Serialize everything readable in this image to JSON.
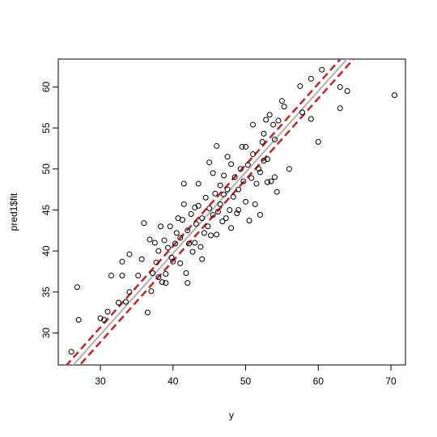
{
  "chart_data": {
    "type": "scatter",
    "x_label": "y",
    "y_label": "pred1$fit",
    "xlim": [
      24.2,
      72.0
    ],
    "ylim": [
      26.1,
      63.4
    ],
    "xticks": [
      30,
      40,
      50,
      60,
      70
    ],
    "yticks": [
      30,
      35,
      40,
      45,
      50,
      55,
      60
    ],
    "point_color": "#000000",
    "x": [
      26,
      26.8,
      27,
      30,
      31,
      30.5,
      31.5,
      32.5,
      33,
      33,
      33.5,
      34,
      34,
      35.2,
      35.7,
      36,
      36.5,
      36.8,
      37,
      37.2,
      37.5,
      37.7,
      38,
      38,
      38.3,
      38.5,
      38.8,
      39,
      39,
      39.3,
      39.6,
      39.8,
      40,
      40.3,
      40.5,
      40.7,
      41,
      41,
      41.3,
      41.5,
      41.5,
      41.8,
      42,
      42,
      42.2,
      42.5,
      42.7,
      43,
      43,
      43.2,
      43.5,
      43.5,
      43.8,
      44,
      44,
      44.3,
      44.5,
      44.8,
      45,
      45,
      45.2,
      45.5,
      45.5,
      45.8,
      46,
      46,
      46.2,
      46.5,
      46.5,
      46.8,
      47,
      47,
      47.3,
      47.5,
      47.5,
      47.8,
      48,
      48,
      48.3,
      48.5,
      48.8,
      49,
      49,
      49.3,
      49.5,
      49.7,
      50,
      50,
      50.3,
      50.5,
      50.8,
      51,
      51,
      51.3,
      51.5,
      51.8,
      52,
      52,
      52.3,
      52.5,
      52.5,
      52.8,
      53,
      53,
      53.3,
      53.5,
      53.8,
      54,
      54,
      54.3,
      54.5,
      55,
      55.3,
      56,
      57.5,
      57.8,
      59,
      59,
      60,
      60.5,
      63,
      63,
      64,
      70.5
    ],
    "values": [
      27.7,
      35.6,
      31.6,
      31.8,
      32.6,
      31.6,
      37,
      33.7,
      38.7,
      37,
      33.8,
      39.6,
      35,
      37,
      39,
      43.4,
      32.5,
      41.4,
      35.1,
      37.3,
      41,
      38.6,
      36.8,
      40,
      43,
      36.2,
      41.3,
      36.1,
      37.2,
      40.4,
      43,
      39.2,
      38.7,
      40.9,
      42.2,
      44,
      41.6,
      38.5,
      43.8,
      45.7,
      48.2,
      37.3,
      36.1,
      42.5,
      40.9,
      44.5,
      39.9,
      45.3,
      41,
      43.3,
      48.2,
      45.5,
      40.5,
      44,
      39,
      42.2,
      46.5,
      43,
      50.8,
      45.2,
      41.9,
      44.4,
      49.5,
      47,
      52.8,
      42,
      44.8,
      48,
      45.7,
      43.6,
      46.9,
      49.2,
      44,
      51.5,
      47.5,
      45,
      50.6,
      42.8,
      46.6,
      49,
      44.6,
      47.5,
      45,
      50,
      52.7,
      48.5,
      52.7,
      46,
      50.5,
      43.7,
      48.9,
      55.4,
      51.8,
      45.7,
      48.2,
      50,
      44.4,
      49.6,
      53.3,
      54.3,
      51,
      56,
      48.4,
      51.2,
      56.6,
      48.5,
      55.4,
      53.6,
      49,
      47.2,
      55.9,
      58.3,
      57.6,
      50,
      60.1,
      56.9,
      56.1,
      61,
      53.3,
      62.1,
      60,
      57.4,
      59.5,
      59
    ],
    "lines": [
      {
        "intercept": 0.1,
        "slope": 0.99,
        "color": "#b0b0b0",
        "dashed": false
      },
      {
        "intercept": 1.0,
        "slope": 0.99,
        "color": "#cc2222",
        "dashed": true
      },
      {
        "intercept": -0.8,
        "slope": 0.99,
        "color": "#cc2222",
        "dashed": true
      }
    ]
  }
}
